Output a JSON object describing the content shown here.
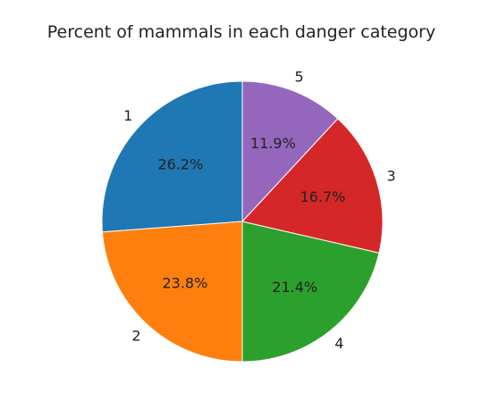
{
  "chart_data": {
    "type": "pie",
    "title": "Percent of mammals in each danger category",
    "start_angle_deg": 90,
    "direction": "counterclockwise",
    "slices": [
      {
        "label": "1",
        "value": 26.2,
        "pct_label": "26.2%",
        "color": "#1f77b4"
      },
      {
        "label": "2",
        "value": 23.8,
        "pct_label": "23.8%",
        "color": "#ff7f0e"
      },
      {
        "label": "4",
        "value": 21.4,
        "pct_label": "21.4%",
        "color": "#2ca02c"
      },
      {
        "label": "3",
        "value": 16.7,
        "pct_label": "16.7%",
        "color": "#d62728"
      },
      {
        "label": "5",
        "value": 11.9,
        "pct_label": "11.9%",
        "color": "#9467bd"
      }
    ]
  }
}
